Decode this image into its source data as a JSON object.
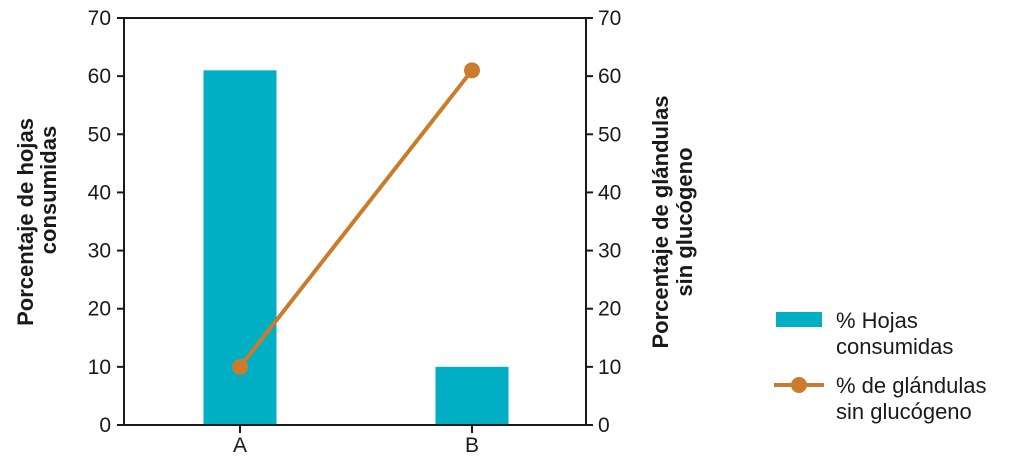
{
  "chart_data": {
    "type": "bar+line",
    "categories": [
      "A",
      "B"
    ],
    "series": [
      {
        "name": "% Hojas consumidas",
        "kind": "bar",
        "axis": "left",
        "values": [
          61,
          10
        ],
        "color": "#00AFC4"
      },
      {
        "name": "% de glándulas sin glucógeno",
        "kind": "line",
        "axis": "right",
        "values": [
          10,
          61
        ],
        "color": "#C97D2C"
      }
    ],
    "y_left": {
      "label_lines": [
        "Porcentaje de hojas",
        "consumidas"
      ],
      "ylim": [
        0,
        70
      ],
      "ticks": [
        "0",
        "10",
        "20",
        "30",
        "40",
        "50",
        "60",
        "70"
      ]
    },
    "y_right": {
      "label_lines": [
        "Porcentaje de glándulas",
        "sin glucógeno"
      ],
      "ylim": [
        0,
        70
      ],
      "ticks": [
        "0",
        "10",
        "20",
        "30",
        "40",
        "50",
        "60",
        "70"
      ]
    },
    "legend": {
      "placement": "right",
      "items": [
        {
          "lines": [
            "% Hojas",
            "consumidas"
          ]
        },
        {
          "lines": [
            "% de glándulas",
            "sin glucógeno"
          ]
        }
      ]
    },
    "grid": false
  }
}
